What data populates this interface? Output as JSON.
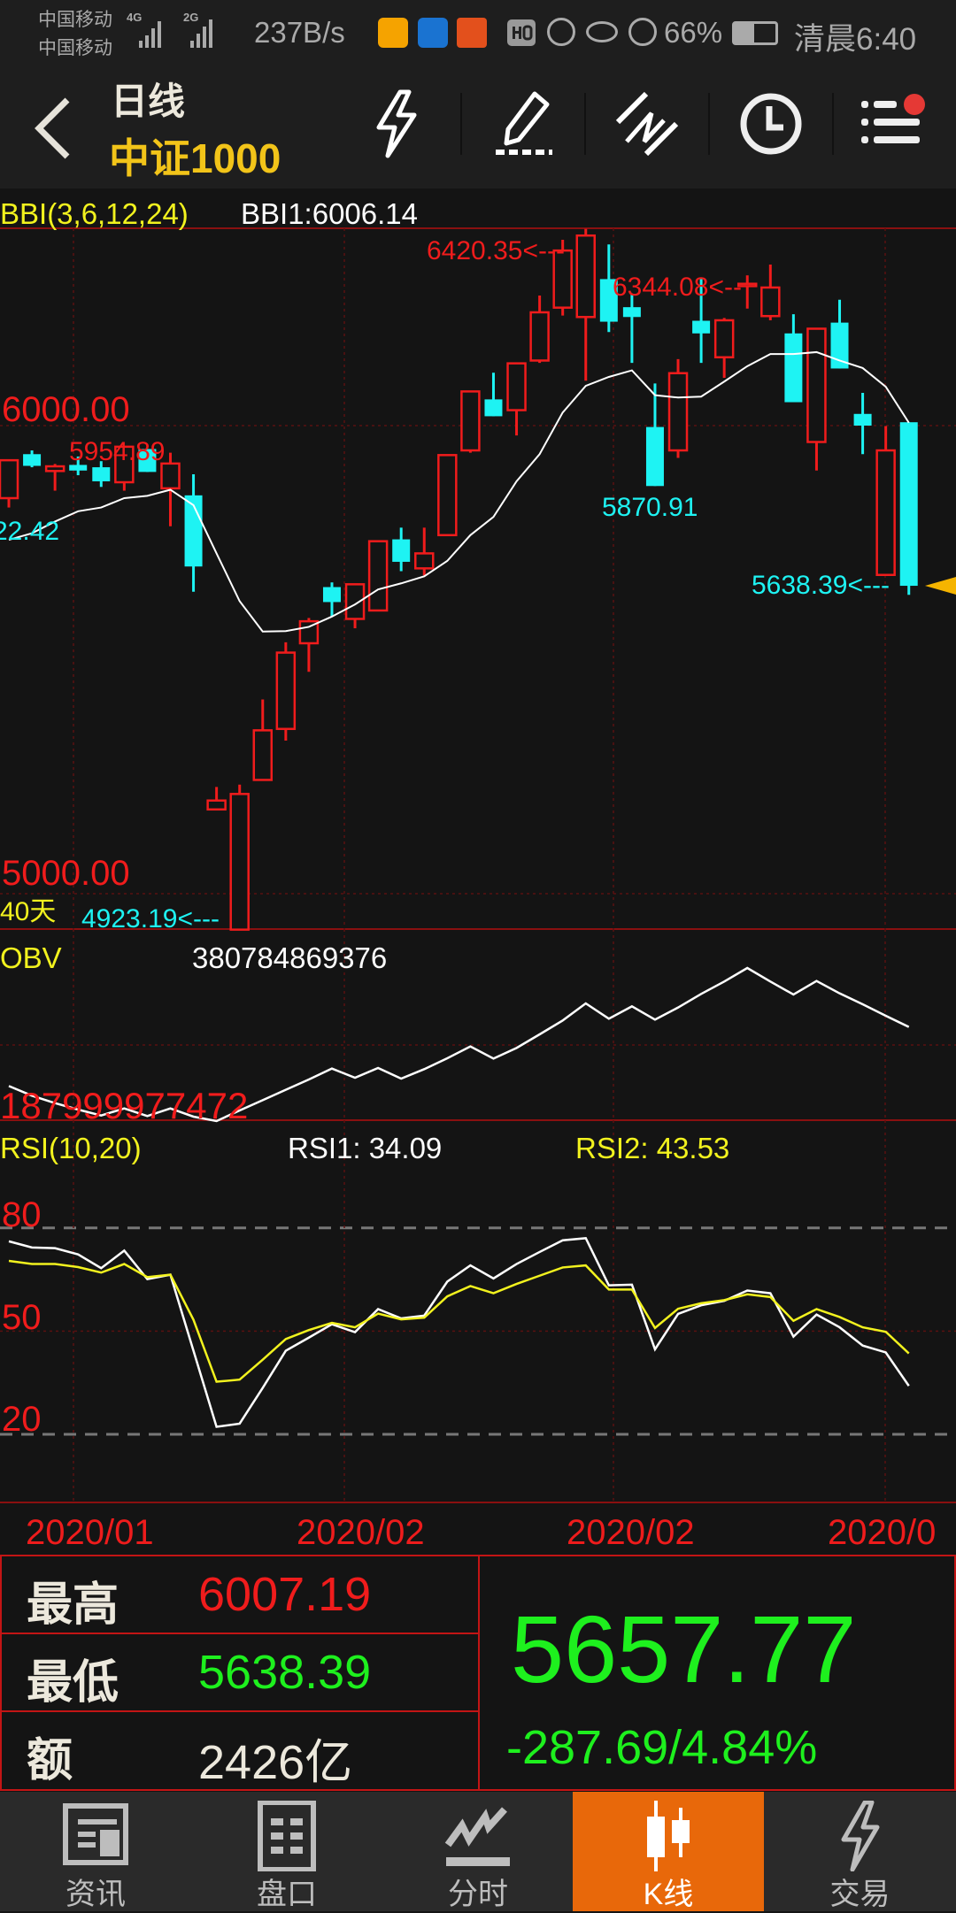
{
  "status_bar": {
    "carrier1": "中国移动",
    "carrier2": "中国移动",
    "net1": "4G",
    "net2": "2G",
    "speed": "237B/s",
    "battery": "66%",
    "time": "清晨6:40"
  },
  "toolbar": {
    "period": "日线",
    "title": "中证1000",
    "icons": [
      "back-icon",
      "lightning-icon",
      "pencil-icon",
      "draw-line-icon",
      "clock-icon",
      "menu-icon"
    ],
    "menu_badge_color": "#e53935"
  },
  "colors": {
    "up": "#f01c1c",
    "down": "#1ef3f3",
    "bbi": "#ffffff",
    "rsi1": "#ffffff",
    "rsi2": "#f2f21e",
    "accent": "#e8680a",
    "price_down_text": "#1ef01e"
  },
  "chart_data": [
    {
      "type": "candlestick",
      "title": "BBI(3,6,12,24)",
      "indicator_value": "BBI1:6006.14",
      "ylim": [
        4900,
        6450
      ],
      "yticks": [
        "6000.00",
        "5000.00"
      ],
      "period_label": "40天",
      "annotations": {
        "high": "6420.35<---",
        "high2": "6344.08<--",
        "label_5954": "5954.89",
        "label_left": "22.42",
        "low_mid": "5870.91",
        "low_last": "5638.39<---",
        "low_min": "4923.19<---"
      },
      "open": [
        5845,
        5939,
        5903,
        5916,
        5911,
        5879,
        5950,
        5866,
        5851,
        5180,
        4923.19,
        5243,
        5352,
        5535,
        5655,
        5587,
        5605,
        5757,
        5695,
        5766,
        5947,
        6056,
        6033,
        6139,
        6252,
        6232,
        6313,
        6253,
        5997,
        5947,
        6224,
        6146,
        6298,
        6234,
        6197,
        5965,
        6220,
        6025,
        5681,
        6007.19
      ],
      "high": [
        5926,
        5947,
        5918,
        5934,
        5924,
        5954.89,
        5950,
        5942,
        5896,
        5228,
        5233,
        5415,
        5537,
        5589,
        5665,
        5661,
        5753,
        5782,
        5782,
        5937,
        6073,
        6113,
        6133,
        6278,
        6397,
        6420.35,
        6387,
        6281,
        6090,
        6142,
        6313,
        6230,
        6321,
        6344.08,
        6238,
        6207,
        6269,
        6070,
        5999,
        6007.19
      ],
      "low": [
        5825,
        5911,
        5861,
        5894,
        5869,
        5861,
        5901,
        5785,
        5645,
        5180,
        4923.19,
        5243,
        5327,
        5474,
        5592,
        5567,
        5605,
        5689,
        5680,
        5766,
        5942,
        6020,
        5979,
        6134,
        6235,
        6096,
        6200,
        6134,
        5870.91,
        5931,
        6134,
        6102,
        6250,
        6225,
        6050,
        5904,
        6122,
        5939,
        5681,
        5638.39
      ],
      "close": [
        5926,
        5914,
        5913,
        5904,
        5881,
        5954.89,
        5901,
        5919,
        5699,
        5199,
        5213,
        5349,
        5515,
        5582,
        5623,
        5661,
        5753,
        5709,
        5727,
        5937,
        6073,
        6020,
        6133,
        6242,
        6374,
        6406,
        6222,
        6232,
        5870.91,
        6112,
        6197,
        6225,
        6303,
        6295,
        6050,
        6207,
        6122,
        6000,
        5947,
        5657.77
      ],
      "bbi": [
        5756,
        5770,
        5795,
        5817,
        5825,
        5845,
        5850,
        5863,
        5830,
        5727,
        5625,
        5560,
        5561,
        5570,
        5592,
        5618,
        5650,
        5663,
        5678,
        5711,
        5766,
        5805,
        5881,
        5939,
        6028,
        6085,
        6104,
        6118,
        6065,
        6060,
        6062,
        6094,
        6127,
        6153,
        6153,
        6157,
        6139,
        6123,
        6083,
        6006.14
      ]
    },
    {
      "type": "line",
      "title": "OBV",
      "indicator_value": "380784869376",
      "min_label": "187999977472",
      "values": [
        259900000000.0,
        240000000000.0,
        224900000000.0,
        211600000000.0,
        199500000000.0,
        214000000000.0,
        198300000000.0,
        214000000000.0,
        197100000000.0,
        188000000000.0,
        209800000000.0,
        230900000000.0,
        252100000000.0,
        273200000000.0,
        295600000000.0,
        276800000000.0,
        296800000000.0,
        275000000000.0,
        294400000000.0,
        316700000000.0,
        340900000000.0,
        316100000000.0,
        337900000000.0,
        365700000000.0,
        394100000000.0,
        429200000000.0,
        397700000000.0,
        423100000000.0,
        395900000000.0,
        420700000000.0,
        448500000000.0,
        473900000000.0,
        501700000000.0,
        473900000000.0,
        447300000000.0,
        475100000000.0,
        449700000000.0,
        427300000000.0,
        403800000000.0,
        380784869376.0
      ]
    },
    {
      "type": "line",
      "title": "RSI(10,20)",
      "ylim": [
        0,
        100
      ],
      "yticks": [
        "80",
        "50",
        "20"
      ],
      "series": [
        {
          "name": "RSI1: 34.09",
          "values": [
            76.1,
            74.3,
            74.1,
            72.3,
            68.3,
            73.4,
            65.1,
            66.4,
            44.3,
            22.2,
            23.1,
            33.5,
            44.3,
            48.1,
            52.0,
            49.7,
            56.4,
            53.7,
            54.5,
            64.4,
            69.1,
            65.3,
            69.5,
            73.0,
            76.4,
            77.0,
            63.3,
            63.5,
            44.7,
            55.0,
            57.5,
            58.8,
            61.8,
            61.0,
            48.4,
            54.8,
            51.1,
            45.8,
            43.8,
            34.09
          ]
        },
        {
          "name": "RSI2: 43.53",
          "values": [
            70.4,
            69.5,
            69.5,
            68.6,
            67.0,
            69.5,
            65.7,
            66.4,
            53.3,
            35.3,
            35.9,
            41.7,
            47.7,
            50.3,
            52.4,
            51.1,
            55.1,
            53.4,
            53.9,
            60.1,
            63.1,
            61.0,
            63.7,
            66.1,
            68.5,
            69.1,
            62.1,
            62.1,
            50.9,
            56.5,
            58.1,
            59.0,
            60.7,
            59.9,
            53.0,
            56.4,
            54.1,
            51.1,
            49.8,
            43.53
          ]
        }
      ]
    }
  ],
  "date_axis": [
    "2020/01",
    "2020/02",
    "2020/02",
    "2020/0"
  ],
  "info": {
    "high_label": "最高",
    "high": "6007.19",
    "low_label": "最低",
    "low": "5638.39",
    "amount_label": "额",
    "amount": "2426亿",
    "price": "5657.77",
    "change": "-287.69/4.84%"
  },
  "nav": {
    "tabs": [
      {
        "label": "资讯",
        "icon": "newspaper-icon"
      },
      {
        "label": "盘口",
        "icon": "order-book-icon"
      },
      {
        "label": "分时",
        "icon": "trend-icon"
      },
      {
        "label": "K线",
        "icon": "candlestick-icon",
        "active": true
      },
      {
        "label": "交易",
        "icon": "lightning-icon"
      }
    ]
  }
}
